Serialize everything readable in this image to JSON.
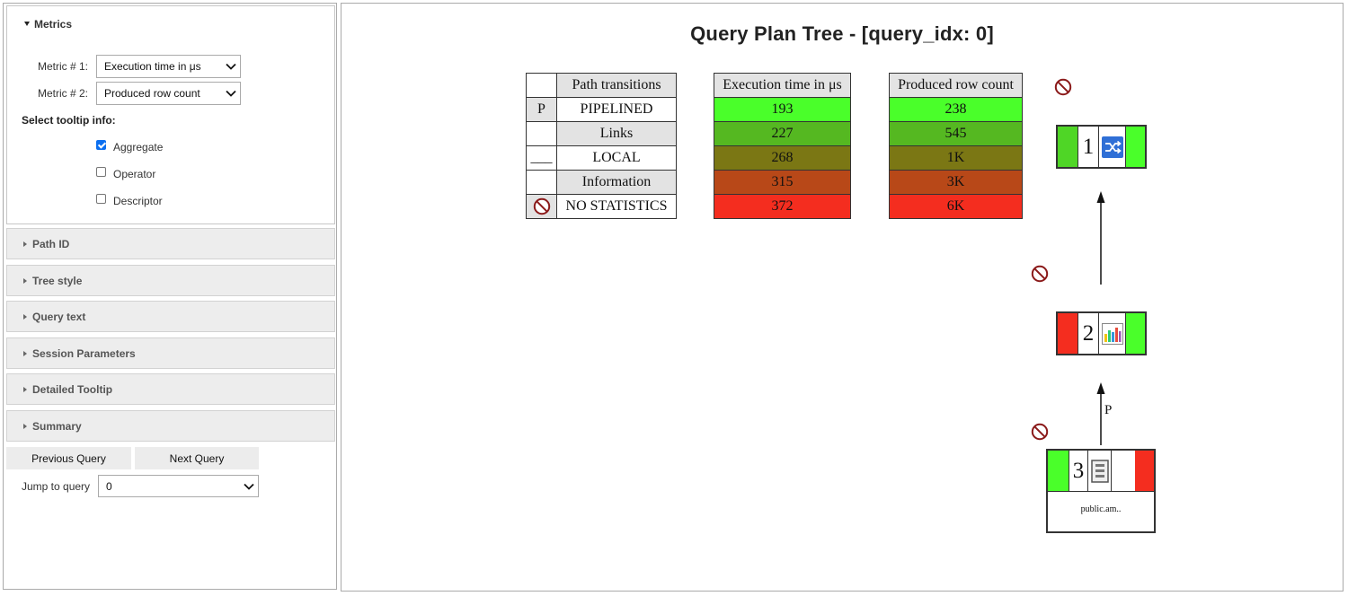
{
  "sidebar": {
    "metrics": {
      "title": "Metrics",
      "metric1_label": "Metric # 1:",
      "metric1_value": "Execution time in μs",
      "metric2_label": "Metric # 2:",
      "metric2_value": "Produced row count",
      "tooltip_heading": "Select tooltip info:",
      "tooltip_options": [
        {
          "label": "Aggregate",
          "checked": true
        },
        {
          "label": "Operator",
          "checked": false
        },
        {
          "label": "Descriptor",
          "checked": false
        }
      ]
    },
    "sections": [
      "Path ID",
      "Tree style",
      "Query text",
      "Session Parameters",
      "Detailed Tooltip",
      "Summary"
    ],
    "prev_button": "Previous Query",
    "next_button": "Next Query",
    "jump_label": "Jump to query",
    "jump_value": "0"
  },
  "main": {
    "title": "Query Plan Tree - [query_idx: 0]",
    "legend": {
      "header": "Path transitions",
      "rows": [
        {
          "symbol": "P",
          "label": "PIPELINED"
        },
        {
          "symbol": "",
          "label": "Links"
        },
        {
          "symbol": "___",
          "label": "LOCAL"
        },
        {
          "symbol": "",
          "label": "Information"
        },
        {
          "symbol": "no-statistics-icon",
          "label": "NO STATISTICS"
        }
      ]
    },
    "scales": [
      {
        "header": "Execution time in μs",
        "values": [
          "193",
          "227",
          "268",
          "315",
          "372"
        ],
        "colors": [
          "#4aff2a",
          "#55b821",
          "#7b7714",
          "#b84818",
          "#f42d1f"
        ]
      },
      {
        "header": "Produced row count",
        "values": [
          "238",
          "545",
          "1K",
          "3K",
          "6K"
        ],
        "colors": [
          "#4aff2a",
          "#55b821",
          "#7b7714",
          "#b84818",
          "#f42d1f"
        ]
      }
    ],
    "nodes": [
      {
        "id": "1",
        "icon": "shuffle-icon",
        "left_color": "#4fd626",
        "right_color": "#4aff2a"
      },
      {
        "id": "2",
        "icon": "bar-chart-icon",
        "left_color": "#f42d1f",
        "right_color": "#4aff2a"
      },
      {
        "id": "3",
        "icon": "table-scan-icon",
        "left_color": "#4aff2a",
        "right_color": "#f42d1f",
        "relation": "public.am.."
      }
    ],
    "edges": [
      {
        "from": "2",
        "to": "1",
        "label": ""
      },
      {
        "from": "3",
        "to": "2",
        "label": "P"
      }
    ]
  }
}
